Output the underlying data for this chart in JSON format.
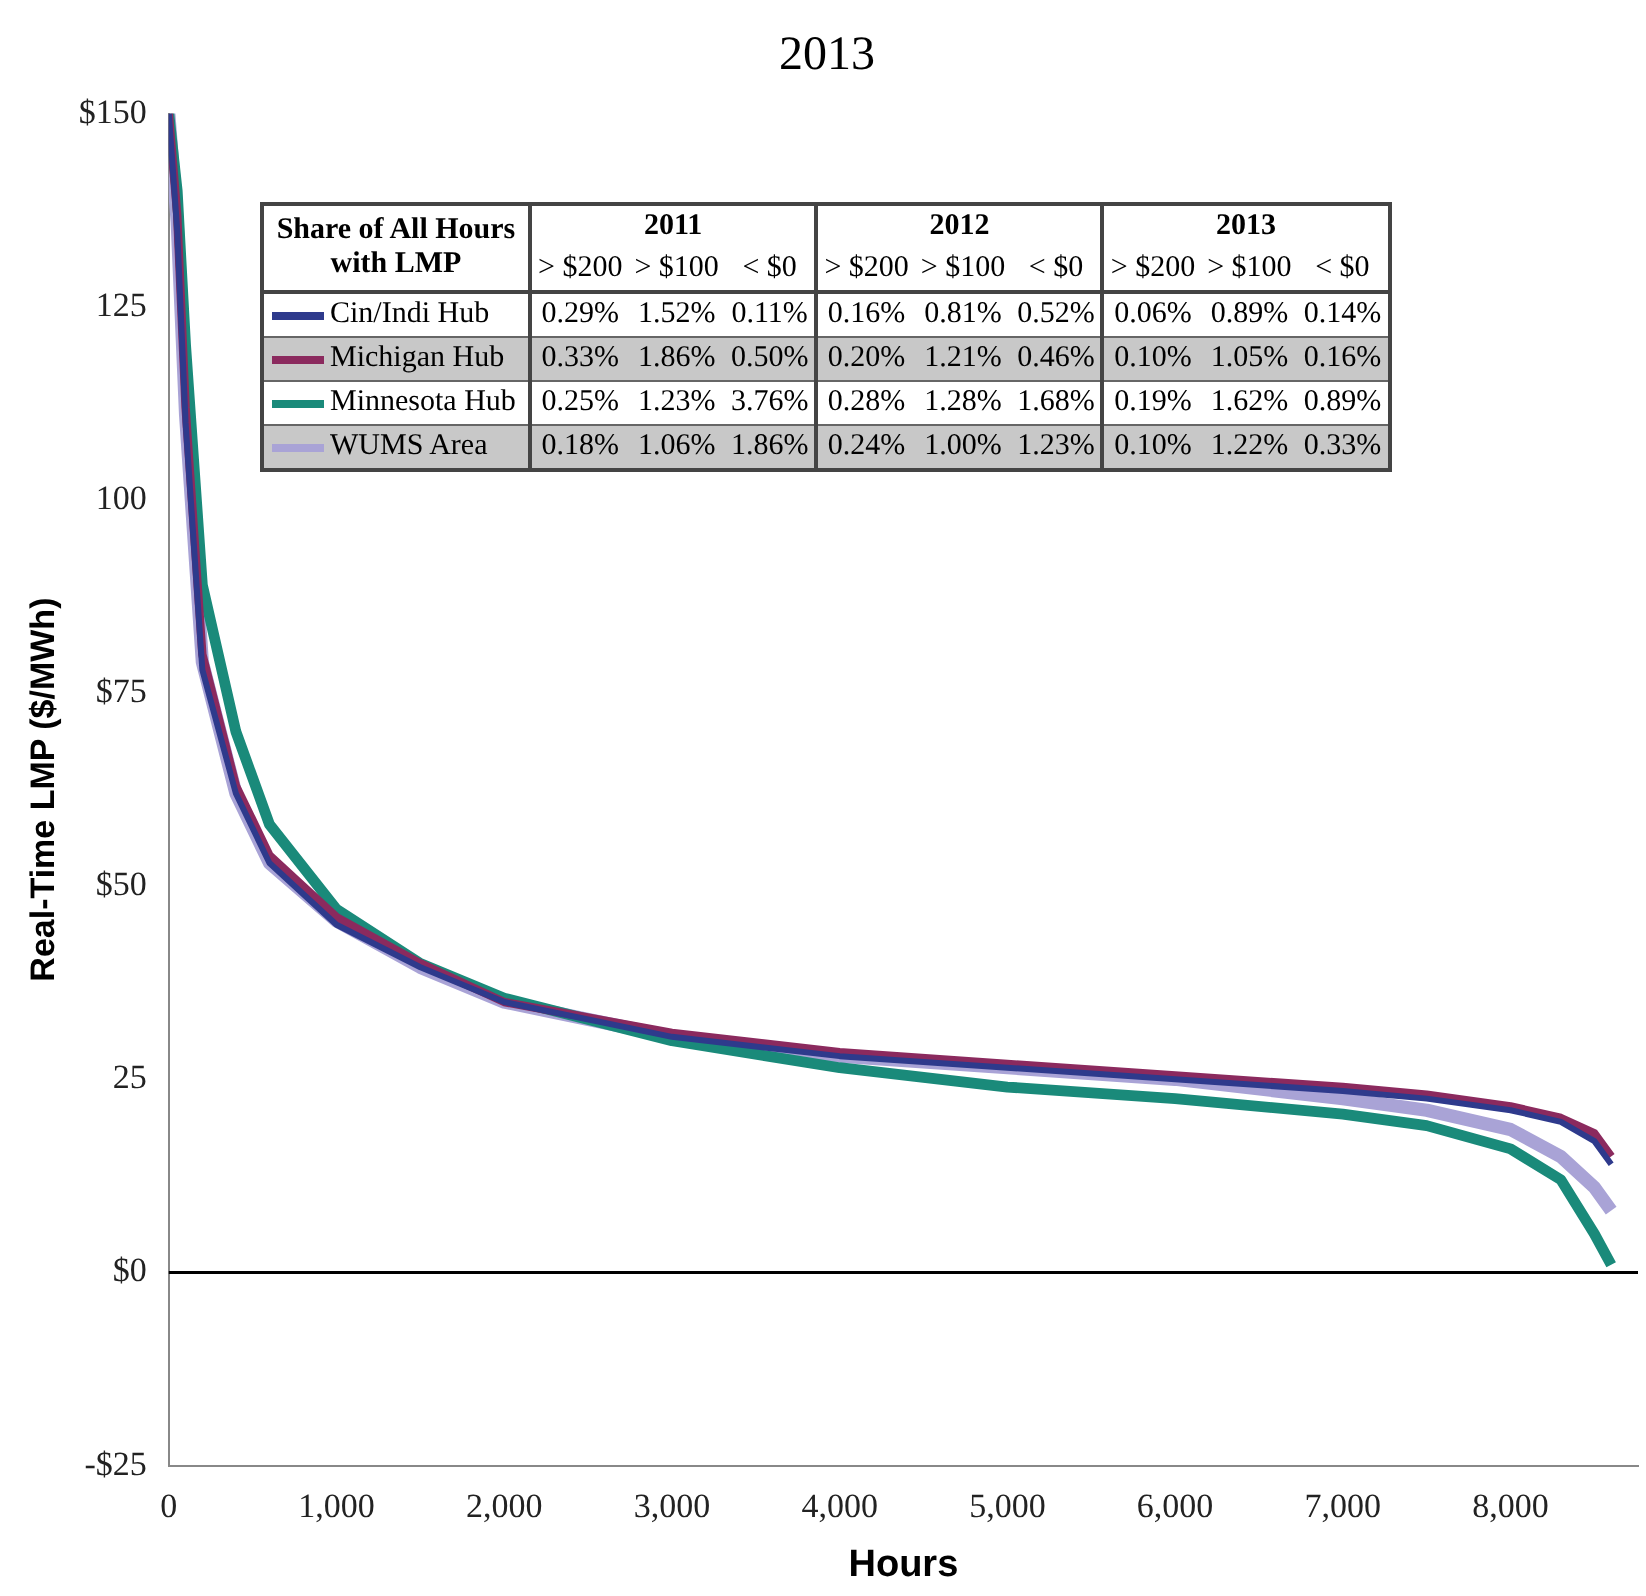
{
  "chart_data": {
    "type": "line",
    "title": "2013",
    "xlabel": "Hours",
    "ylabel": "Real-Time LMP ($/MWh)",
    "xlim": [
      0,
      8760
    ],
    "xticks": [
      0,
      {
        "value": 1000,
        "label": "1,000"
      },
      {
        "value": 2000,
        "label": "2,000"
      },
      {
        "value": 3000,
        "label": "3,000"
      },
      {
        "value": 4000,
        "label": "4,000"
      },
      {
        "value": 5000,
        "label": "5,000"
      },
      {
        "value": 6000,
        "label": "6,000"
      },
      {
        "value": 7000,
        "label": "7,000"
      },
      {
        "value": 8000,
        "label": "8,000"
      }
    ],
    "ylim": [
      -25,
      150
    ],
    "yticks": [
      {
        "value": -25,
        "label": "-$25"
      },
      {
        "value": 0,
        "label": "$0"
      },
      25,
      {
        "value": 50,
        "label": "$50"
      },
      {
        "value": 75,
        "label": "$75"
      },
      100,
      125,
      {
        "value": 150,
        "label": "$150"
      }
    ],
    "grid": false,
    "legend": "top",
    "marker": "none",
    "line_style": "solid",
    "ref_lines": [
      {
        "axis": "y",
        "value": 0,
        "color": "#000000"
      }
    ],
    "annotations": [
      "Share of All Hours with LMP",
      "2011",
      "2012",
      "2013",
      "> $200",
      "> $100",
      "< $0",
      "> $200",
      "> $100",
      "< $0",
      "> $200",
      "> $100",
      "< $0",
      "0.29%",
      "1.52%",
      "0.11%",
      "0.16%",
      "0.81%",
      "0.52%",
      "0.06%",
      "0.89%",
      "0.14%",
      "0.33%",
      "1.86%",
      "0.50%",
      "0.20%",
      "1.21%",
      "0.46%",
      "0.10%",
      "1.05%",
      "0.16%",
      "0.25%",
      "1.23%",
      "3.76%",
      "0.28%",
      "1.28%",
      "1.68%",
      "0.19%",
      "1.62%",
      "0.89%",
      "0.18%",
      "1.06%",
      "1.86%",
      "0.24%",
      "1.00%",
      "1.23%",
      "0.10%",
      "1.22%",
      "0.33%"
    ],
    "series": [
      {
        "name": "Cin/Indi Hub",
        "color": "#2e3a8c",
        "x": [
          0,
          50,
          100,
          200,
          400,
          600,
          1000,
          1500,
          2000,
          3000,
          4000,
          5000,
          6000,
          7000,
          7500,
          8000,
          8300,
          8500,
          8600
        ],
        "values": [
          150,
          135,
          110,
          78,
          62,
          53,
          45,
          39.5,
          35,
          30.5,
          28,
          26.5,
          25,
          23.5,
          22.5,
          21,
          19.5,
          17,
          14
        ]
      },
      {
        "name": "Michigan Hub",
        "color": "#8b2a5e",
        "x": [
          0,
          50,
          100,
          200,
          400,
          600,
          1000,
          1500,
          2000,
          3000,
          4000,
          5000,
          6000,
          7000,
          7500,
          8000,
          8300,
          8500,
          8600
        ],
        "values": [
          150,
          137,
          112,
          80,
          63,
          54,
          46,
          40,
          35,
          31,
          28.5,
          27,
          25.5,
          24,
          23,
          21.5,
          20,
          18,
          15
        ]
      },
      {
        "name": "Minnesota Hub",
        "color": "#1a8a7a",
        "x": [
          0,
          50,
          100,
          200,
          400,
          600,
          1000,
          1500,
          2000,
          3000,
          4000,
          5000,
          6000,
          7000,
          7500,
          8000,
          8300,
          8500,
          8600
        ],
        "values": [
          150,
          140,
          120,
          89,
          70,
          58,
          47,
          40,
          35.5,
          30,
          26.5,
          24,
          22.5,
          20.5,
          19,
          16,
          12,
          5,
          1
        ]
      },
      {
        "name": "WUMS Area",
        "color": "#a9a3d6",
        "x": [
          0,
          50,
          100,
          200,
          400,
          600,
          1000,
          1500,
          2000,
          3000,
          4000,
          5000,
          6000,
          7000,
          7500,
          8000,
          8300,
          8500,
          8600
        ],
        "values": [
          150,
          136,
          111,
          79,
          62,
          53,
          45.5,
          39.5,
          35,
          30.5,
          28,
          26.5,
          25,
          22.5,
          21,
          18.5,
          15,
          11,
          8
        ]
      }
    ]
  }
}
